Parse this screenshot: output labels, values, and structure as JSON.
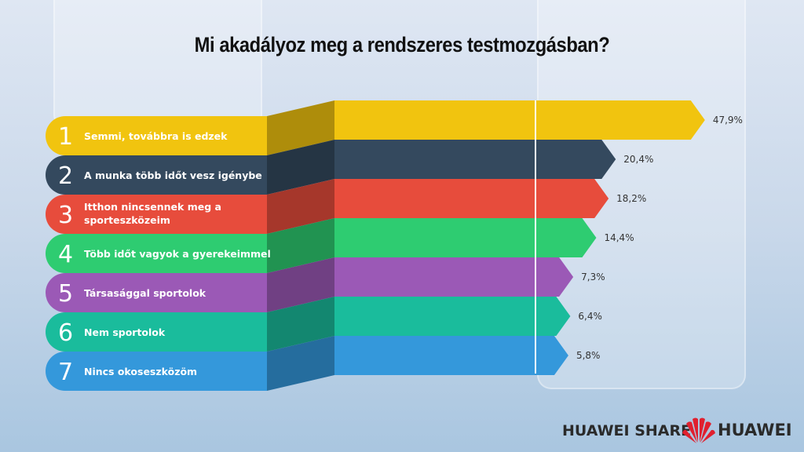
{
  "chart_data": {
    "type": "bar",
    "orientation": "horizontal",
    "title": "Mi akadályoz meg a rendszeres testmozgásban?",
    "categories": [
      {
        "rank": "1",
        "label": "Semmi, továbbra is edzek",
        "color": "#f1c40f"
      },
      {
        "rank": "2",
        "label": "A munka több időt vesz igénybe",
        "color": "#34495e"
      },
      {
        "rank": "3",
        "label": "Itthon nincsennek meg a sporteszközeim",
        "color": "#e74c3c"
      },
      {
        "rank": "4",
        "label": "Több időt vagyok a gyerekeimmel",
        "color": "#2ecc71"
      },
      {
        "rank": "5",
        "label": "Társasággal sportolok",
        "color": "#9b59b6"
      },
      {
        "rank": "6",
        "label": "Nem sportolok",
        "color": "#1abc9c"
      },
      {
        "rank": "7",
        "label": "Nincs okoseszközöm",
        "color": "#3498db"
      }
    ],
    "values": [
      47.9,
      20.4,
      18.2,
      14.4,
      7.3,
      6.4,
      5.8
    ],
    "value_labels": [
      "47,9%",
      "20,4%",
      "18,2%",
      "14,4%",
      "7,3%",
      "6,4%",
      "5,8%"
    ],
    "unit": "%"
  },
  "footer": {
    "share": "HUAWEI SHARE",
    "brand": "HUAWEI",
    "brand_color": "#e0202f"
  }
}
